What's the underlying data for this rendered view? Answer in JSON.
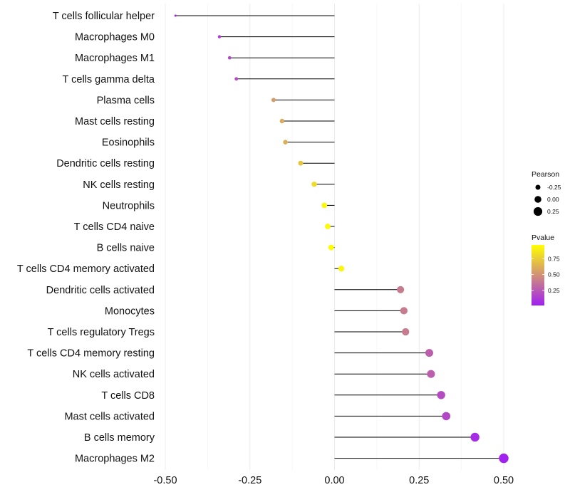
{
  "chart_data": {
    "type": "lollipop",
    "title": "",
    "xlabel": "",
    "ylabel": "",
    "xlim": [
      -0.5,
      0.5
    ],
    "x_ticks": [
      -0.5,
      -0.25,
      0.0,
      0.25,
      0.5
    ],
    "x_tick_labels": [
      "-0.50",
      "-0.25",
      "0.00",
      "0.25",
      "0.50"
    ],
    "baseline": 0,
    "categories": [
      "T cells follicular helper",
      "Macrophages M0",
      "Macrophages M1",
      "T cells gamma delta",
      "Plasma cells",
      "Mast cells resting",
      "Eosinophils",
      "Dendritic cells resting",
      "NK cells resting",
      "Neutrophils",
      "T cells CD4 naive",
      "B cells naive",
      "T cells CD4 memory activated",
      "Dendritic cells activated",
      "Monocytes",
      "T cells regulatory  Tregs ",
      "T cells CD4 memory resting",
      "NK cells activated",
      "T cells CD8",
      "Mast cells activated",
      "B cells memory",
      "Macrophages M2"
    ],
    "pearson": [
      -0.47,
      -0.34,
      -0.31,
      -0.29,
      -0.18,
      -0.155,
      -0.145,
      -0.1,
      -0.06,
      -0.03,
      -0.02,
      -0.01,
      0.02,
      0.195,
      0.205,
      0.21,
      0.28,
      0.285,
      0.315,
      0.33,
      0.415,
      0.5
    ],
    "pvalue": [
      0.01,
      0.12,
      0.18,
      0.2,
      0.55,
      0.6,
      0.62,
      0.72,
      0.82,
      0.93,
      0.95,
      0.97,
      0.93,
      0.4,
      0.4,
      0.4,
      0.28,
      0.28,
      0.2,
      0.18,
      0.06,
      0.02
    ],
    "legend": {
      "size": {
        "title": "Pearson",
        "values": [
          -0.25,
          0.0,
          0.25
        ],
        "labels": [
          "-0.25",
          "0.00",
          "0.25"
        ]
      },
      "color": {
        "title": "Pvalue",
        "ticks": [
          0.75,
          0.5,
          0.25
        ],
        "labels": [
          "0.75",
          "0.50",
          "0.25"
        ],
        "range": [
          0.01,
          0.97
        ],
        "low_color": "#a020f0",
        "high_color": "#ffff00"
      },
      "placement": "right"
    },
    "colors": {
      "line": "#000000",
      "grid_major": "#ebebeb",
      "grid_minor": "#f5f5f5"
    }
  }
}
